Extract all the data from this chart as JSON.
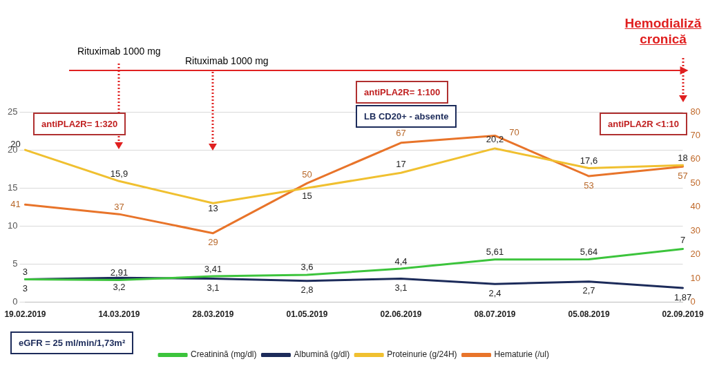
{
  "chart_data": {
    "type": "line",
    "categories": [
      "19.02.2019",
      "14.03.2019",
      "28.03.2019",
      "01.05.2019",
      "02.06.2019",
      "08.07.2019",
      "05.08.2019",
      "02.09.2019"
    ],
    "series": [
      {
        "name": "Creatinină (mg/dl)",
        "color": "#3cc43c",
        "values": [
          3,
          2.91,
          3.41,
          3.6,
          4.4,
          5.61,
          5.64,
          7
        ],
        "value_labels": [
          "3",
          "2,91",
          "3,41",
          "3,6",
          "4,4",
          "5,61",
          "5,64",
          "7"
        ]
      },
      {
        "name": "Albumină (g/dl)",
        "color": "#1c2b5a",
        "values": [
          3,
          3.2,
          3.1,
          2.8,
          3.1,
          2.4,
          2.7,
          1.87
        ],
        "value_labels": [
          "3",
          "3,2",
          "3,1",
          "2,8",
          "3,1",
          "2,4",
          "2,7",
          "1,87"
        ]
      },
      {
        "name": "Proteinurie (g/24H)",
        "color": "#f0c030",
        "values": [
          20,
          15.9,
          13,
          15,
          17,
          20.2,
          17.6,
          18
        ],
        "value_labels": [
          "20",
          "15,9",
          "13",
          "15",
          "17",
          "20,2",
          "17,6",
          "18"
        ]
      },
      {
        "name": "Hematurie (/ul)",
        "color": "#e8742a",
        "axis": "y2",
        "values": [
          41,
          37,
          29,
          50,
          67,
          70,
          53,
          57
        ],
        "value_labels": [
          "41",
          "37",
          "29",
          "50",
          "67",
          "70",
          "53",
          "57"
        ]
      }
    ],
    "ylim": [
      0,
      25
    ],
    "yticks": [
      0,
      5,
      10,
      15,
      20,
      25
    ],
    "y2lim": [
      0,
      80
    ],
    "y2ticks": [
      0,
      10,
      20,
      30,
      40,
      50,
      60,
      70,
      80
    ],
    "grid": "y",
    "legend": "bottom",
    "marker": "none",
    "line_style": "solid",
    "annotations": [
      "Rituximab 1000 mg",
      "Rituximab 1000 mg",
      "Hemodializă cronică",
      "antiPLA2R= 1:320",
      "antiPLA2R= 1:100",
      "LB CD20+ - absente",
      "antiPLA2R <1:10",
      "eGFR = 25 ml/min/1,73m²"
    ]
  }
}
